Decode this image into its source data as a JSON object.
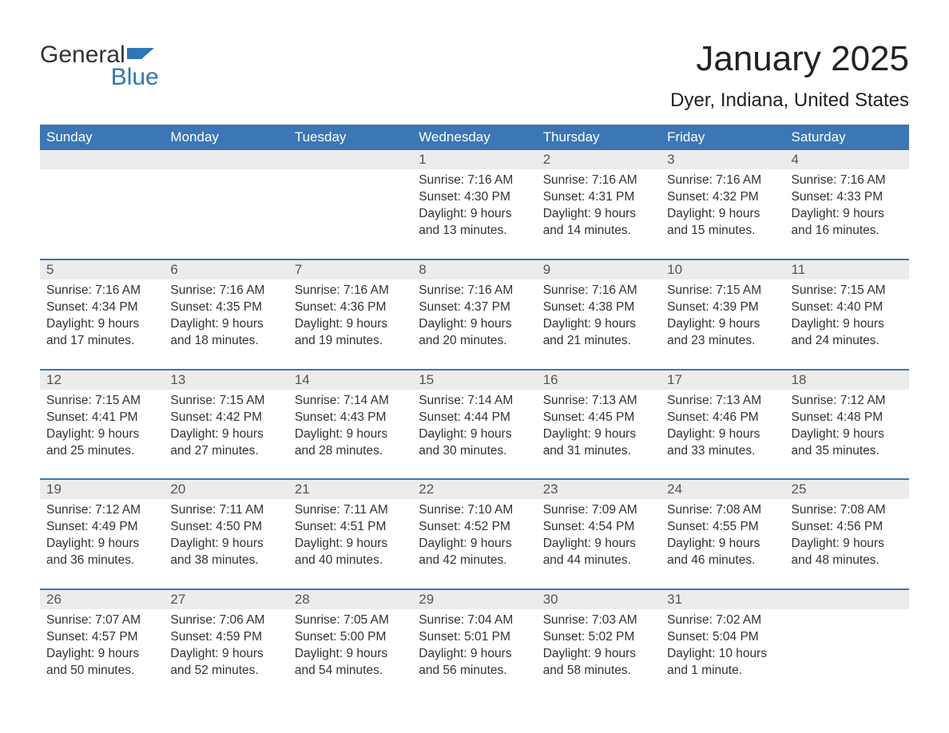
{
  "logo": {
    "word1": "General",
    "word2": "Blue",
    "shape_color": "#2f76b8"
  },
  "title": "January 2025",
  "location": "Dyer, Indiana, United States",
  "colors": {
    "header_bg": "#3b77b5",
    "header_text": "#ffffff",
    "daynum_bg": "#ececec",
    "daynum_text": "#555555",
    "body_text": "#333333",
    "rule": "#3b77b5"
  },
  "day_names": [
    "Sunday",
    "Monday",
    "Tuesday",
    "Wednesday",
    "Thursday",
    "Friday",
    "Saturday"
  ],
  "weeks": [
    [
      null,
      null,
      null,
      {
        "n": "1",
        "sunrise": "7:16 AM",
        "sunset": "4:30 PM",
        "daylight": "9 hours and 13 minutes."
      },
      {
        "n": "2",
        "sunrise": "7:16 AM",
        "sunset": "4:31 PM",
        "daylight": "9 hours and 14 minutes."
      },
      {
        "n": "3",
        "sunrise": "7:16 AM",
        "sunset": "4:32 PM",
        "daylight": "9 hours and 15 minutes."
      },
      {
        "n": "4",
        "sunrise": "7:16 AM",
        "sunset": "4:33 PM",
        "daylight": "9 hours and 16 minutes."
      }
    ],
    [
      {
        "n": "5",
        "sunrise": "7:16 AM",
        "sunset": "4:34 PM",
        "daylight": "9 hours and 17 minutes."
      },
      {
        "n": "6",
        "sunrise": "7:16 AM",
        "sunset": "4:35 PM",
        "daylight": "9 hours and 18 minutes."
      },
      {
        "n": "7",
        "sunrise": "7:16 AM",
        "sunset": "4:36 PM",
        "daylight": "9 hours and 19 minutes."
      },
      {
        "n": "8",
        "sunrise": "7:16 AM",
        "sunset": "4:37 PM",
        "daylight": "9 hours and 20 minutes."
      },
      {
        "n": "9",
        "sunrise": "7:16 AM",
        "sunset": "4:38 PM",
        "daylight": "9 hours and 21 minutes."
      },
      {
        "n": "10",
        "sunrise": "7:15 AM",
        "sunset": "4:39 PM",
        "daylight": "9 hours and 23 minutes."
      },
      {
        "n": "11",
        "sunrise": "7:15 AM",
        "sunset": "4:40 PM",
        "daylight": "9 hours and 24 minutes."
      }
    ],
    [
      {
        "n": "12",
        "sunrise": "7:15 AM",
        "sunset": "4:41 PM",
        "daylight": "9 hours and 25 minutes."
      },
      {
        "n": "13",
        "sunrise": "7:15 AM",
        "sunset": "4:42 PM",
        "daylight": "9 hours and 27 minutes."
      },
      {
        "n": "14",
        "sunrise": "7:14 AM",
        "sunset": "4:43 PM",
        "daylight": "9 hours and 28 minutes."
      },
      {
        "n": "15",
        "sunrise": "7:14 AM",
        "sunset": "4:44 PM",
        "daylight": "9 hours and 30 minutes."
      },
      {
        "n": "16",
        "sunrise": "7:13 AM",
        "sunset": "4:45 PM",
        "daylight": "9 hours and 31 minutes."
      },
      {
        "n": "17",
        "sunrise": "7:13 AM",
        "sunset": "4:46 PM",
        "daylight": "9 hours and 33 minutes."
      },
      {
        "n": "18",
        "sunrise": "7:12 AM",
        "sunset": "4:48 PM",
        "daylight": "9 hours and 35 minutes."
      }
    ],
    [
      {
        "n": "19",
        "sunrise": "7:12 AM",
        "sunset": "4:49 PM",
        "daylight": "9 hours and 36 minutes."
      },
      {
        "n": "20",
        "sunrise": "7:11 AM",
        "sunset": "4:50 PM",
        "daylight": "9 hours and 38 minutes."
      },
      {
        "n": "21",
        "sunrise": "7:11 AM",
        "sunset": "4:51 PM",
        "daylight": "9 hours and 40 minutes."
      },
      {
        "n": "22",
        "sunrise": "7:10 AM",
        "sunset": "4:52 PM",
        "daylight": "9 hours and 42 minutes."
      },
      {
        "n": "23",
        "sunrise": "7:09 AM",
        "sunset": "4:54 PM",
        "daylight": "9 hours and 44 minutes."
      },
      {
        "n": "24",
        "sunrise": "7:08 AM",
        "sunset": "4:55 PM",
        "daylight": "9 hours and 46 minutes."
      },
      {
        "n": "25",
        "sunrise": "7:08 AM",
        "sunset": "4:56 PM",
        "daylight": "9 hours and 48 minutes."
      }
    ],
    [
      {
        "n": "26",
        "sunrise": "7:07 AM",
        "sunset": "4:57 PM",
        "daylight": "9 hours and 50 minutes."
      },
      {
        "n": "27",
        "sunrise": "7:06 AM",
        "sunset": "4:59 PM",
        "daylight": "9 hours and 52 minutes."
      },
      {
        "n": "28",
        "sunrise": "7:05 AM",
        "sunset": "5:00 PM",
        "daylight": "9 hours and 54 minutes."
      },
      {
        "n": "29",
        "sunrise": "7:04 AM",
        "sunset": "5:01 PM",
        "daylight": "9 hours and 56 minutes."
      },
      {
        "n": "30",
        "sunrise": "7:03 AM",
        "sunset": "5:02 PM",
        "daylight": "9 hours and 58 minutes."
      },
      {
        "n": "31",
        "sunrise": "7:02 AM",
        "sunset": "5:04 PM",
        "daylight": "10 hours and 1 minute."
      },
      null
    ]
  ],
  "labels": {
    "sunrise": "Sunrise: ",
    "sunset": "Sunset: ",
    "daylight": "Daylight: "
  }
}
